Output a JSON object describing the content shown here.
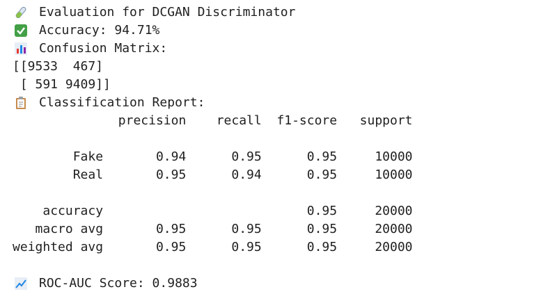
{
  "title": "Evaluation for DCGAN Discriminator",
  "accuracy": "Accuracy: 94.71%",
  "confusion_matrix": {
    "label": "Confusion Matrix:",
    "rows": [
      "[[9533  467]",
      " [ 591 9409]]"
    ]
  },
  "report": {
    "label": "Classification Report:",
    "header": {
      "precision": "precision",
      "recall": "recall",
      "f1": "f1-score",
      "support": "support"
    },
    "rows": [
      {
        "label": "Fake",
        "precision": "0.94",
        "recall": "0.95",
        "f1": "0.95",
        "support": "10000"
      },
      {
        "label": "Real",
        "precision": "0.95",
        "recall": "0.94",
        "f1": "0.95",
        "support": "10000"
      },
      {
        "label": "accuracy",
        "f1": "0.95",
        "support": "20000"
      },
      {
        "label": "macro avg",
        "precision": "0.95",
        "recall": "0.95",
        "f1": "0.95",
        "support": "20000"
      },
      {
        "label": "weighted avg",
        "precision": "0.95",
        "recall": "0.95",
        "f1": "0.95",
        "support": "20000"
      }
    ]
  },
  "roc_auc": "ROC-AUC Score: 0.9883"
}
